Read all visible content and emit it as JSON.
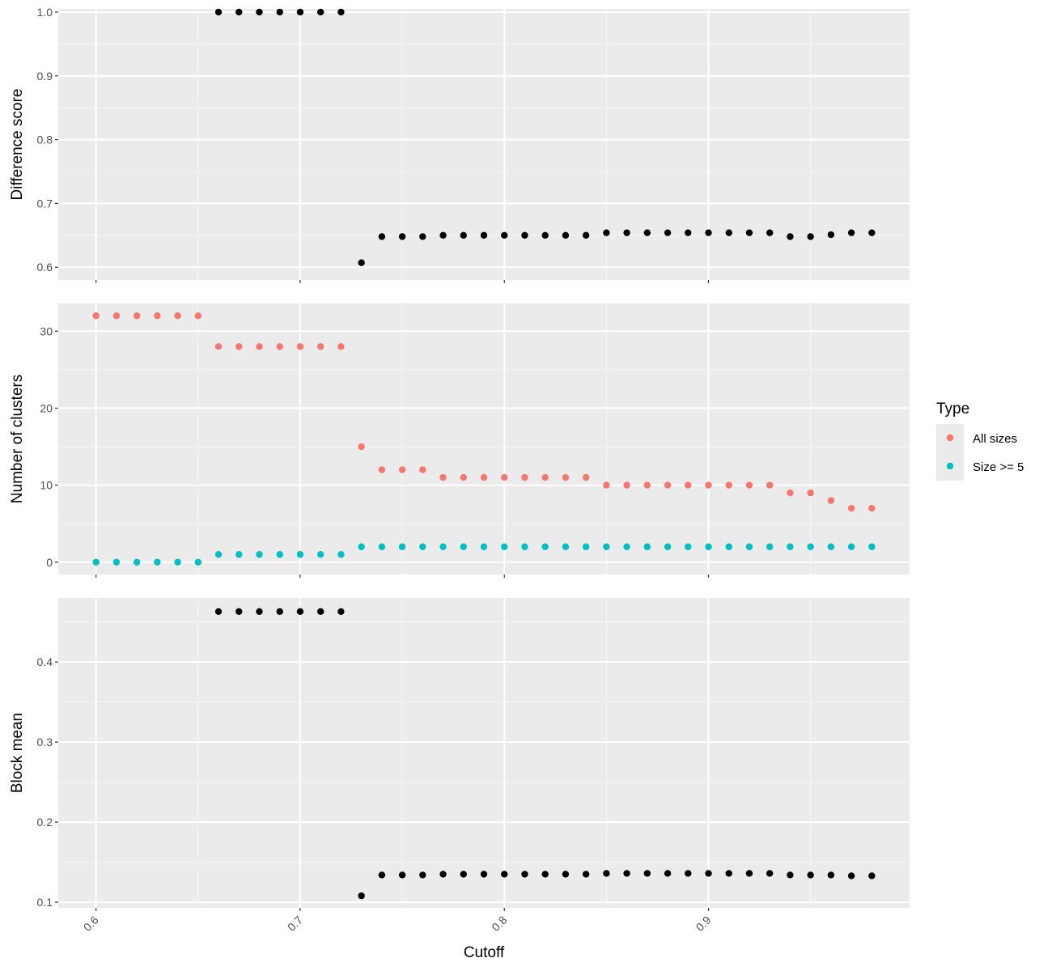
{
  "chart_data": {
    "type": "scatter",
    "xlabel": "Cutoff",
    "x_ticks": [
      "0.6",
      "0.7",
      "0.8",
      "0.9"
    ],
    "x_tick_values": [
      0.6,
      0.7,
      0.8,
      0.9
    ],
    "xlim": [
      0.5815,
      0.9985
    ],
    "grid": true,
    "legend": {
      "title": "Type",
      "position": "right",
      "entries": [
        {
          "label": "All sizes",
          "color": "#F8766D"
        },
        {
          "label": "Size >= 5",
          "color": "#00BFC4"
        }
      ]
    },
    "panels": [
      {
        "ylabel": "Difference score",
        "ylim": [
          0.58,
          1.005
        ],
        "y_ticks": [
          "0.6",
          "0.7",
          "0.8",
          "0.9",
          "1.0"
        ],
        "y_tick_values": [
          0.6,
          0.7,
          0.8,
          0.9,
          1.0
        ],
        "series": [
          {
            "color": "#000000",
            "x": [
              0.66,
              0.67,
              0.68,
              0.69,
              0.7,
              0.71,
              0.72,
              0.73,
              0.74,
              0.75,
              0.76,
              0.77,
              0.78,
              0.79,
              0.8,
              0.81,
              0.82,
              0.83,
              0.84,
              0.85,
              0.86,
              0.87,
              0.88,
              0.89,
              0.9,
              0.91,
              0.92,
              0.93,
              0.94,
              0.95,
              0.96,
              0.97,
              0.98
            ],
            "y": [
              1.0,
              1.0,
              1.0,
              1.0,
              1.0,
              1.0,
              1.0,
              0.607,
              0.648,
              0.648,
              0.648,
              0.65,
              0.65,
              0.65,
              0.65,
              0.65,
              0.65,
              0.65,
              0.65,
              0.654,
              0.654,
              0.654,
              0.654,
              0.654,
              0.654,
              0.654,
              0.654,
              0.654,
              0.648,
              0.648,
              0.651,
              0.654,
              0.654
            ]
          }
        ]
      },
      {
        "ylabel": "Number of clusters",
        "ylim": [
          -1.6,
          33.6
        ],
        "y_ticks": [
          "0",
          "10",
          "20",
          "30"
        ],
        "y_tick_values": [
          0,
          10,
          20,
          30
        ],
        "series": [
          {
            "name": "All sizes",
            "color": "#F8766D",
            "x": [
              0.6,
              0.61,
              0.62,
              0.63,
              0.64,
              0.65,
              0.66,
              0.67,
              0.68,
              0.69,
              0.7,
              0.71,
              0.72,
              0.73,
              0.74,
              0.75,
              0.76,
              0.77,
              0.78,
              0.79,
              0.8,
              0.81,
              0.82,
              0.83,
              0.84,
              0.85,
              0.86,
              0.87,
              0.88,
              0.89,
              0.9,
              0.91,
              0.92,
              0.93,
              0.94,
              0.95,
              0.96,
              0.97,
              0.98
            ],
            "y": [
              32,
              32,
              32,
              32,
              32,
              32,
              28,
              28,
              28,
              28,
              28,
              28,
              28,
              15,
              12,
              12,
              12,
              11,
              11,
              11,
              11,
              11,
              11,
              11,
              11,
              10,
              10,
              10,
              10,
              10,
              10,
              10,
              10,
              10,
              9,
              9,
              8,
              7,
              7
            ]
          },
          {
            "name": "Size >= 5",
            "color": "#00BFC4",
            "x": [
              0.6,
              0.61,
              0.62,
              0.63,
              0.64,
              0.65,
              0.66,
              0.67,
              0.68,
              0.69,
              0.7,
              0.71,
              0.72,
              0.73,
              0.74,
              0.75,
              0.76,
              0.77,
              0.78,
              0.79,
              0.8,
              0.81,
              0.82,
              0.83,
              0.84,
              0.85,
              0.86,
              0.87,
              0.88,
              0.89,
              0.9,
              0.91,
              0.92,
              0.93,
              0.94,
              0.95,
              0.96,
              0.97,
              0.98
            ],
            "y": [
              0,
              0,
              0,
              0,
              0,
              0,
              1,
              1,
              1,
              1,
              1,
              1,
              1,
              2,
              2,
              2,
              2,
              2,
              2,
              2,
              2,
              2,
              2,
              2,
              2,
              2,
              2,
              2,
              2,
              2,
              2,
              2,
              2,
              2,
              2,
              2,
              2,
              2,
              2
            ]
          }
        ]
      },
      {
        "ylabel": "Block mean",
        "ylim": [
          0.093,
          0.48
        ],
        "y_ticks": [
          "0.1",
          "0.2",
          "0.3",
          "0.4"
        ],
        "y_tick_values": [
          0.1,
          0.2,
          0.3,
          0.4
        ],
        "series": [
          {
            "color": "#000000",
            "x": [
              0.66,
              0.67,
              0.68,
              0.69,
              0.7,
              0.71,
              0.72,
              0.73,
              0.74,
              0.75,
              0.76,
              0.77,
              0.78,
              0.79,
              0.8,
              0.81,
              0.82,
              0.83,
              0.84,
              0.85,
              0.86,
              0.87,
              0.88,
              0.89,
              0.9,
              0.91,
              0.92,
              0.93,
              0.94,
              0.95,
              0.96,
              0.97,
              0.98
            ],
            "y": [
              0.463,
              0.463,
              0.463,
              0.463,
              0.463,
              0.463,
              0.463,
              0.108,
              0.134,
              0.134,
              0.134,
              0.135,
              0.135,
              0.135,
              0.135,
              0.135,
              0.135,
              0.135,
              0.135,
              0.136,
              0.136,
              0.136,
              0.136,
              0.136,
              0.136,
              0.136,
              0.136,
              0.136,
              0.134,
              0.134,
              0.134,
              0.133,
              0.133
            ]
          }
        ]
      }
    ]
  }
}
